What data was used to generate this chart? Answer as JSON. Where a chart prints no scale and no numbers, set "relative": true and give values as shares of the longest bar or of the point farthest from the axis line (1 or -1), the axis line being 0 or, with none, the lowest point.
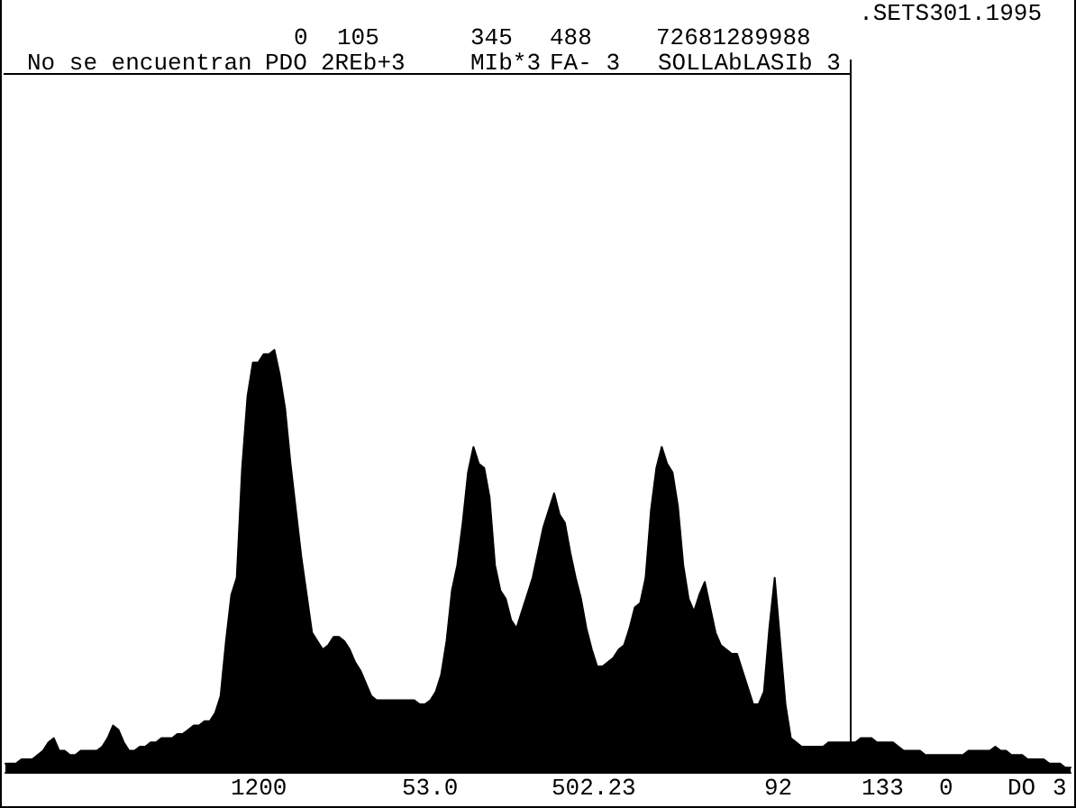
{
  "chart_data": {
    "type": "area",
    "title": ".SETS301.1995",
    "relative": true,
    "color": "#000000",
    "categories": [
      null,
      null,
      null,
      null,
      null,
      null,
      null,
      null,
      null,
      null,
      null,
      null,
      null,
      null,
      null,
      null,
      null,
      null,
      null,
      null,
      null,
      null,
      null,
      null,
      null,
      null,
      null,
      null,
      null,
      null,
      null,
      null,
      null,
      null,
      null,
      null,
      null,
      null,
      null,
      null,
      null,
      null,
      null,
      null,
      null,
      null,
      null,
      null,
      null,
      null,
      null,
      null,
      null,
      null,
      null,
      null,
      null,
      null,
      null,
      null,
      null,
      null,
      null,
      null,
      null,
      null,
      null,
      null,
      null,
      null,
      null,
      null,
      null,
      null,
      null,
      null,
      null,
      null,
      null,
      null,
      null,
      null,
      null,
      null,
      null,
      null,
      null,
      null,
      null,
      null,
      null,
      null,
      null,
      null,
      null,
      null,
      null,
      null,
      null,
      null,
      null,
      null,
      null,
      null,
      null,
      null,
      null,
      null,
      null,
      null,
      null,
      null,
      null,
      null,
      null,
      null,
      null,
      null,
      null,
      null,
      null,
      null,
      null,
      null,
      null,
      null,
      null,
      null,
      null,
      null,
      null,
      null,
      null,
      null,
      null,
      null,
      null,
      null,
      null,
      null,
      null,
      null,
      null,
      null,
      null,
      null,
      null,
      null,
      null,
      null,
      null,
      null,
      null,
      null,
      null,
      null,
      null,
      null,
      null,
      null,
      null,
      null,
      null,
      null,
      null,
      null,
      null,
      null,
      null,
      null,
      null,
      null,
      null,
      null,
      null,
      null,
      null,
      null,
      null,
      null,
      null,
      null,
      null,
      null,
      null,
      null,
      null,
      null,
      null,
      null,
      null,
      null,
      null,
      null,
      null,
      null,
      null,
      null,
      null
    ],
    "values": [
      0.02,
      0.02,
      0.02,
      0.03,
      0.03,
      0.03,
      0.04,
      0.05,
      0.07,
      0.08,
      0.05,
      0.05,
      0.04,
      0.04,
      0.05,
      0.05,
      0.05,
      0.05,
      0.06,
      0.08,
      0.11,
      0.1,
      0.07,
      0.05,
      0.05,
      0.06,
      0.06,
      0.07,
      0.07,
      0.08,
      0.08,
      0.08,
      0.09,
      0.09,
      0.1,
      0.11,
      0.11,
      0.12,
      0.12,
      0.14,
      0.18,
      0.31,
      0.42,
      0.46,
      0.72,
      0.89,
      0.97,
      0.97,
      0.99,
      0.99,
      1,
      0.94,
      0.86,
      0.73,
      0.62,
      0.51,
      0.42,
      0.33,
      0.31,
      0.29,
      0.3,
      0.32,
      0.32,
      0.31,
      0.29,
      0.26,
      0.24,
      0.21,
      0.18,
      0.17,
      0.17,
      0.17,
      0.17,
      0.17,
      0.17,
      0.17,
      0.17,
      0.16,
      0.16,
      0.17,
      0.19,
      0.23,
      0.31,
      0.43,
      0.49,
      0.59,
      0.71,
      0.77,
      0.73,
      0.72,
      0.65,
      0.49,
      0.43,
      0.41,
      0.36,
      0.34,
      0.38,
      0.42,
      0.46,
      0.52,
      0.58,
      0.62,
      0.66,
      0.61,
      0.59,
      0.52,
      0.46,
      0.41,
      0.34,
      0.29,
      0.25,
      0.25,
      0.26,
      0.27,
      0.29,
      0.3,
      0.34,
      0.39,
      0.4,
      0.46,
      0.62,
      0.72,
      0.77,
      0.73,
      0.71,
      0.63,
      0.49,
      0.41,
      0.38,
      0.42,
      0.45,
      0.39,
      0.33,
      0.3,
      0.29,
      0.28,
      0.28,
      0.24,
      0.2,
      0.16,
      0.16,
      0.19,
      0.34,
      0.46,
      0.31,
      0.16,
      0.08,
      0.07,
      0.06,
      0.06,
      0.06,
      0.06,
      0.06,
      0.07,
      0.07,
      0.07,
      0.07,
      0.07,
      0.07,
      0.08,
      0.08,
      0.08,
      0.07,
      0.07,
      0.07,
      0.07,
      0.06,
      0.05,
      0.05,
      0.05,
      0.05,
      0.04,
      0.04,
      0.04,
      0.04,
      0.04,
      0.04,
      0.04,
      0.04,
      0.05,
      0.05,
      0.05,
      0.05,
      0.05,
      0.06,
      0.05,
      0.05,
      0.04,
      0.04,
      0.04,
      0.03,
      0.03,
      0.03,
      0.03,
      0.02,
      0.02,
      0.02,
      0.01,
      0.01
    ],
    "annotations": [
      "0",
      "105",
      "345",
      "488",
      "72681289988",
      "No se encuentran",
      "PDO",
      "2REb+3",
      "MIb*3",
      "FA- 3",
      "SOLLAbLASIb 3",
      "1200",
      "53.0",
      "502.23",
      "92",
      "133",
      "0",
      "DO",
      "3"
    ]
  }
}
